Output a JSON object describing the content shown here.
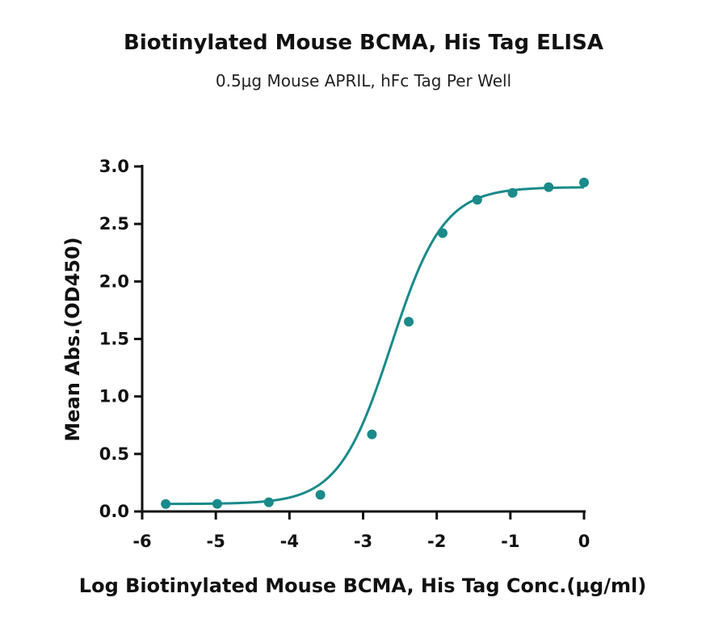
{
  "chart_data": {
    "type": "scatter",
    "title": "Biotinylated Mouse BCMA, His Tag ELISA",
    "subtitle": "0.5μg Mouse APRIL, hFc Tag Per Well",
    "xlabel": "Log Biotinylated Mouse BCMA, His Tag Conc.(μg/ml)",
    "ylabel": "Mean Abs.(OD450)",
    "xlim": [
      -6,
      0
    ],
    "ylim": [
      0,
      3.0
    ],
    "x_ticks": [
      "-6",
      "-5",
      "-4",
      "-3",
      "-2",
      "-1",
      "0"
    ],
    "y_ticks": [
      "0.0",
      "0.5",
      "1.0",
      "1.5",
      "2.0",
      "2.5",
      "3.0"
    ],
    "color": "#1a8a8a",
    "points": {
      "x": [
        -5.68,
        -4.98,
        -4.28,
        -3.58,
        -2.88,
        -2.38,
        -1.92,
        -1.45,
        -0.97,
        -0.48,
        0.0
      ],
      "y": [
        0.065,
        0.066,
        0.08,
        0.145,
        0.67,
        1.65,
        2.42,
        2.71,
        2.77,
        2.82,
        2.86
      ]
    },
    "fit_curve": {
      "model": "4PL",
      "bottom": 0.065,
      "top": 2.82,
      "log_ec50": -2.62,
      "hill": 1.22
    },
    "grid": false,
    "legend": "none"
  }
}
